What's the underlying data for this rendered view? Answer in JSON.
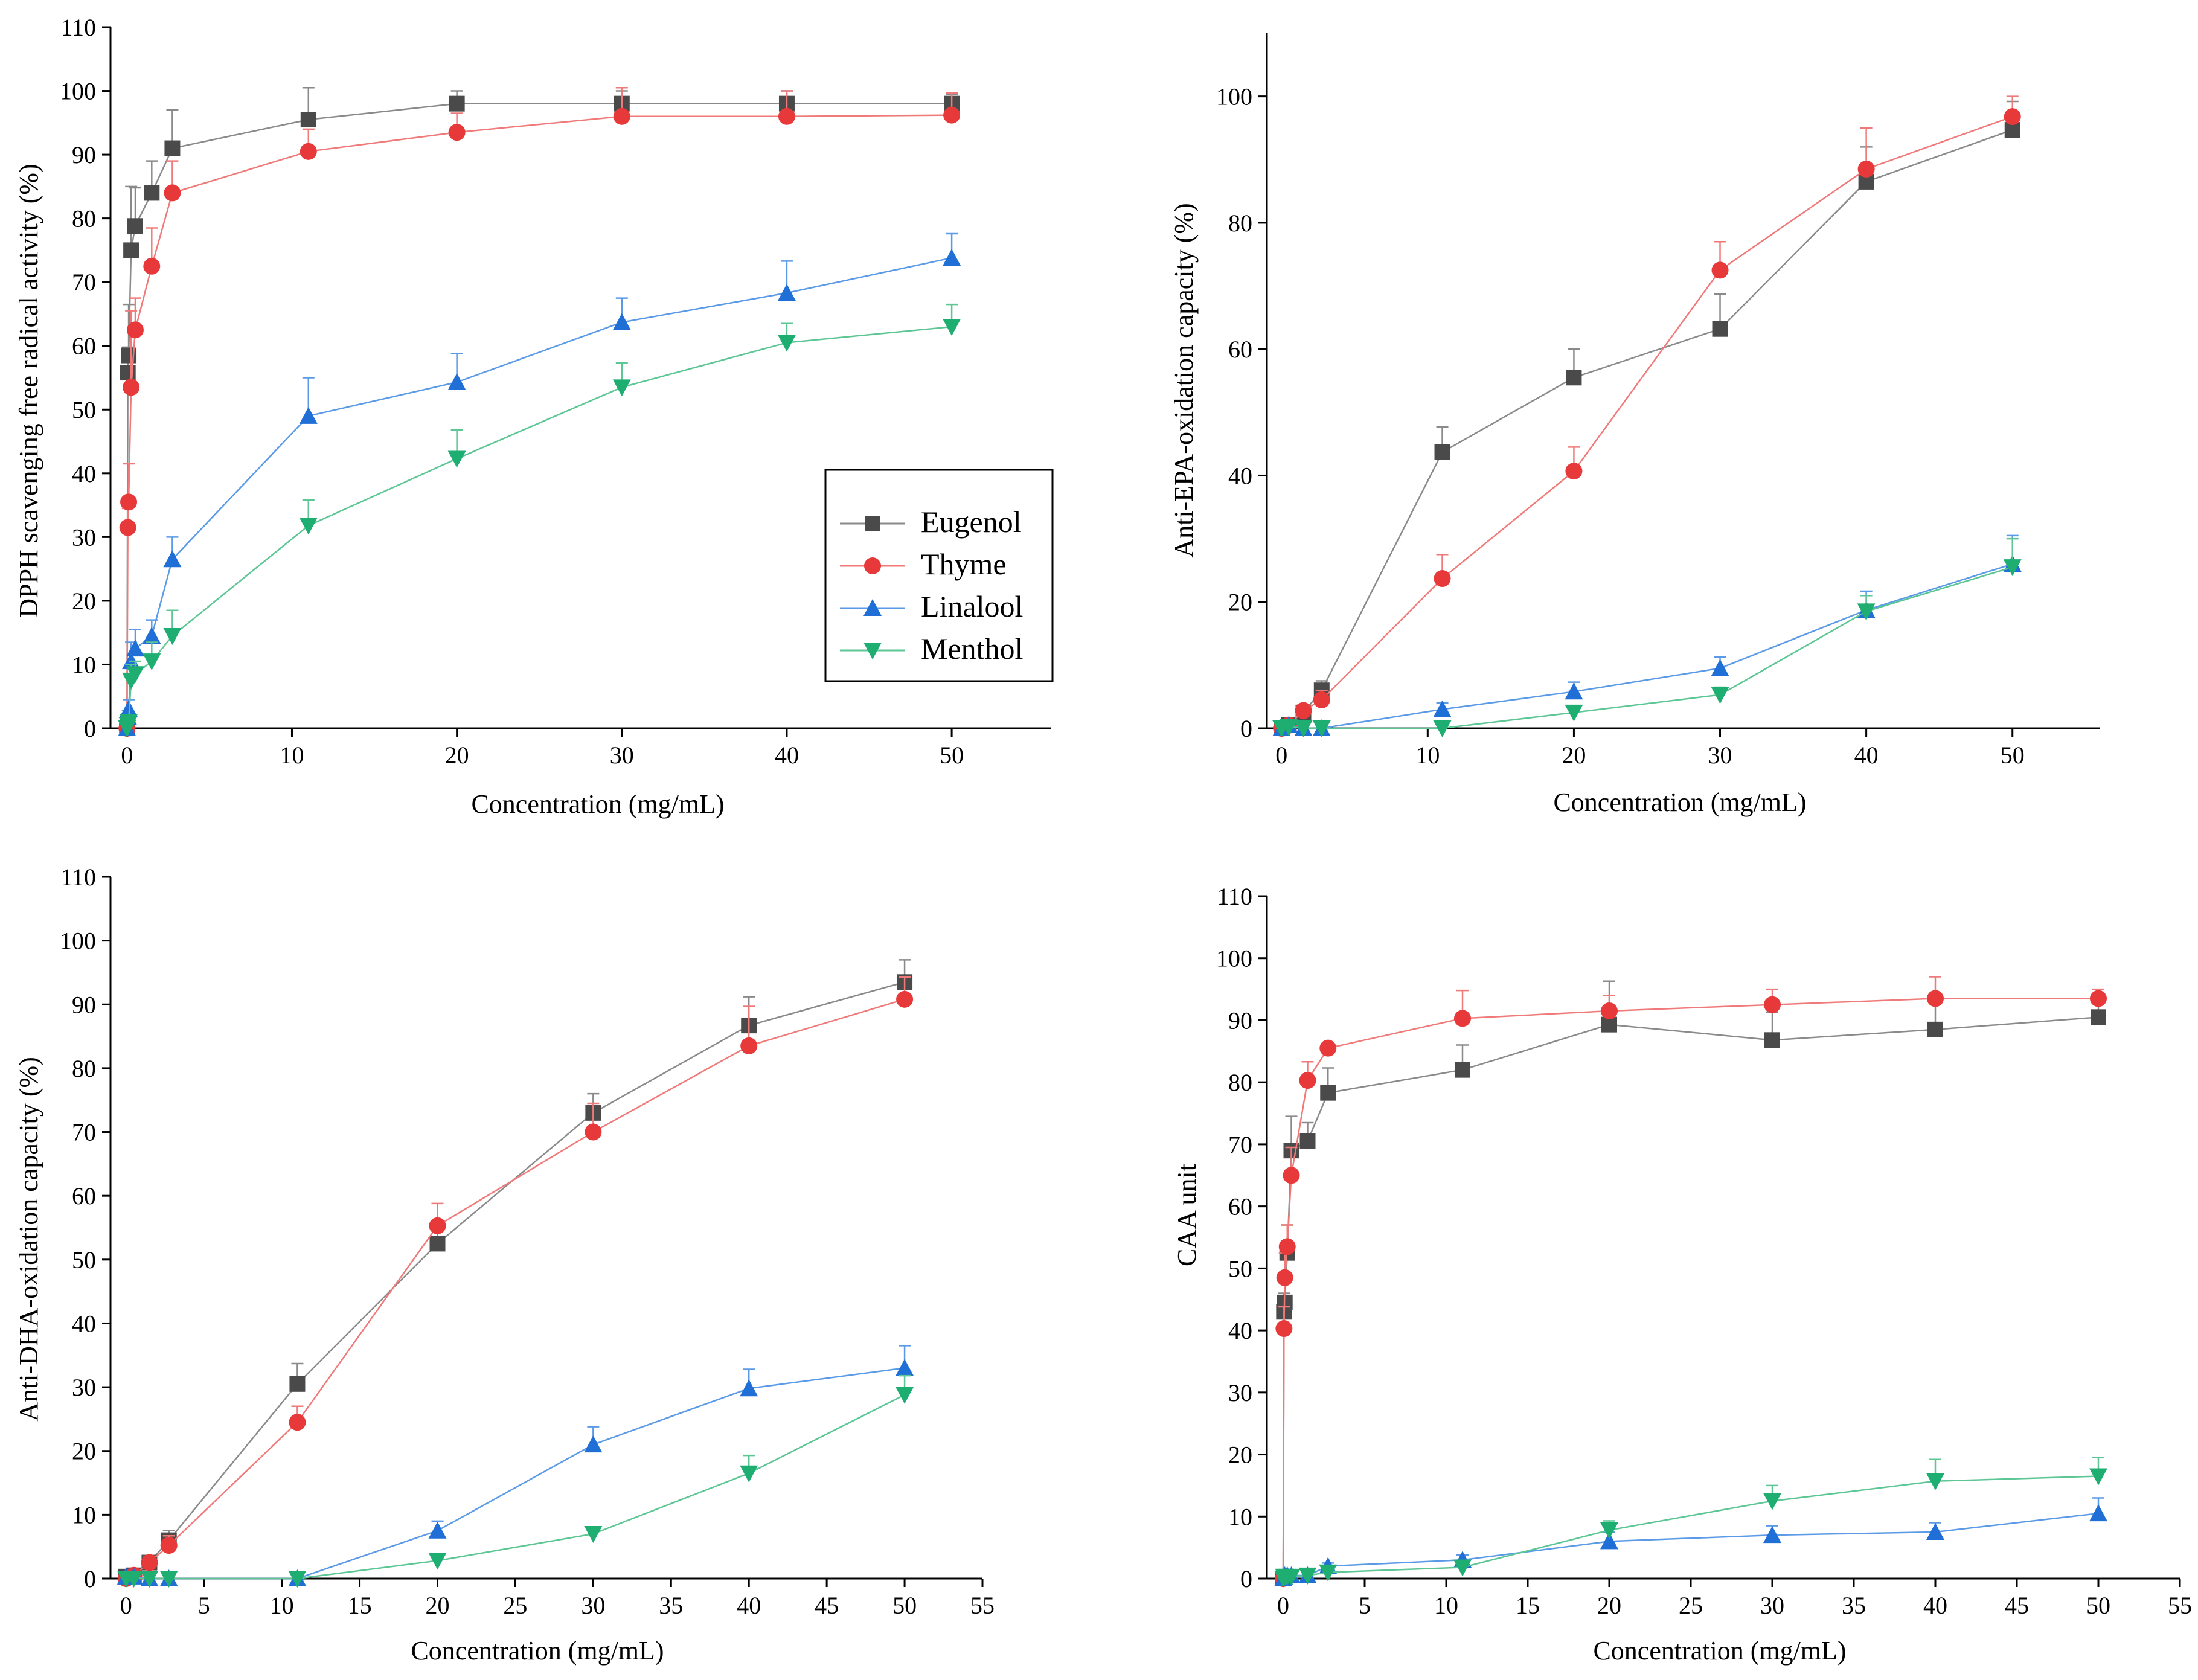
{
  "series_styles": [
    {
      "name": "Eugenol",
      "color": "#4a4a4a",
      "line": "#8a8a8a",
      "marker": "square"
    },
    {
      "name": "Thyme",
      "color": "#e8393a",
      "line": "#f07a7a",
      "marker": "circle"
    },
    {
      "name": "Linalool",
      "color": "#1f6fd6",
      "line": "#5a9ae6",
      "marker": "triangle-up"
    },
    {
      "name": "Menthol",
      "color": "#1fae72",
      "line": "#5cc695",
      "marker": "triangle-down"
    }
  ],
  "legend": {
    "entries": [
      "Eugenol",
      "Thyme",
      "Linalool",
      "Menthol"
    ],
    "location": "lower-right of top-left panel"
  },
  "chart_data": [
    {
      "type": "line",
      "title": "",
      "xlabel": "Concentration (mg/mL)",
      "ylabel": "DPPH scavenging  free radical activity (%)",
      "xlim": [
        -1,
        56
      ],
      "ylim": [
        0,
        110
      ],
      "xticks": [
        0,
        10,
        20,
        30,
        40,
        50
      ],
      "yticks": [
        0,
        10,
        20,
        30,
        40,
        50,
        60,
        70,
        80,
        90,
        100,
        110
      ],
      "x": [
        0,
        0.05,
        0.1,
        0.25,
        0.5,
        1.5,
        2.75,
        11,
        20,
        30,
        40,
        50
      ],
      "series": [
        {
          "name": "Eugenol",
          "values": [
            0,
            55.8,
            58.5,
            75,
            78.8,
            84,
            91,
            95.5,
            98,
            98,
            98,
            98
          ],
          "errors": [
            0,
            4,
            8,
            10,
            6,
            5,
            6,
            5,
            2,
            2,
            2,
            1.5
          ]
        },
        {
          "name": "Thyme",
          "values": [
            0,
            31.5,
            35.5,
            53.5,
            62.5,
            72.5,
            84,
            90.5,
            93.5,
            96,
            96,
            96.2
          ],
          "errors": [
            0,
            3,
            6,
            12,
            5,
            6,
            5,
            3.5,
            3,
            4.5,
            4,
            3.5
          ]
        },
        {
          "name": "Linalool",
          "values": [
            0,
            1.8,
            3,
            10.5,
            12.5,
            14.5,
            26.5,
            49,
            54.3,
            63.7,
            68.3,
            73.8
          ],
          "errors": [
            0,
            1,
            1.5,
            3,
            3,
            2.5,
            3.5,
            6,
            4.5,
            3.8,
            5,
            3.8
          ]
        },
        {
          "name": "Menthol",
          "values": [
            0,
            0.5,
            1,
            7.5,
            8.5,
            10.5,
            14.5,
            31.8,
            42.3,
            53.5,
            60.5,
            63
          ],
          "errors": [
            0,
            0.5,
            1,
            2.5,
            2,
            3,
            4,
            4,
            4.5,
            3.8,
            3,
            3.5
          ]
        }
      ]
    },
    {
      "type": "line",
      "title": "",
      "xlabel": "Concentration (mg/mL)",
      "ylabel": "Anti-EPA-oxidation capacity  (%)",
      "xlim": [
        -1,
        56
      ],
      "ylim": [
        0,
        110
      ],
      "xticks": [
        0,
        10,
        20,
        30,
        40,
        50
      ],
      "yticks": [
        0,
        20,
        40,
        60,
        80,
        100
      ],
      "x": [
        0,
        0.5,
        1.5,
        2.75,
        11,
        20,
        30,
        40,
        50
      ],
      "series": [
        {
          "name": "Eugenol",
          "values": [
            0,
            0.5,
            2.5,
            6,
            43.7,
            55.5,
            63.2,
            86.5,
            94.7
          ],
          "errors": [
            0,
            0.5,
            1,
            1.5,
            4,
            4.5,
            5.5,
            5.5,
            4.5
          ]
        },
        {
          "name": "Thyme",
          "values": [
            0,
            0.5,
            2.8,
            4.5,
            23.7,
            40.7,
            72.5,
            88.5,
            96.8
          ],
          "errors": [
            0,
            0.5,
            1,
            1.5,
            3.8,
            3.8,
            4.5,
            6.5,
            3.2
          ]
        },
        {
          "name": "Linalool",
          "values": [
            0,
            0.5,
            0,
            0,
            3,
            5.8,
            9.5,
            18.7,
            26
          ],
          "errors": [
            0,
            0.3,
            0,
            0,
            1,
            1.5,
            1.8,
            3,
            4.5
          ]
        },
        {
          "name": "Menthol",
          "values": [
            0,
            0.2,
            0,
            0,
            0,
            2.5,
            5.3,
            18.5,
            25.5
          ],
          "errors": [
            0,
            0.2,
            0,
            0,
            0,
            1,
            1.2,
            2.5,
            4.5
          ]
        }
      ]
    },
    {
      "type": "line",
      "title": "",
      "xlabel": "Concentration (mg/mL)",
      "ylabel": "Anti-DHA-oxidation capacity  (%)",
      "xlim": [
        -1,
        55
      ],
      "ylim": [
        0,
        110
      ],
      "xticks": [
        0,
        5,
        10,
        15,
        20,
        25,
        30,
        35,
        40,
        45,
        50,
        55
      ],
      "yticks": [
        0,
        10,
        20,
        30,
        40,
        50,
        60,
        70,
        80,
        90,
        100,
        110
      ],
      "x": [
        0,
        0.5,
        1.5,
        2.75,
        11,
        20,
        30,
        40,
        50
      ],
      "series": [
        {
          "name": "Eugenol",
          "values": [
            0.3,
            0.5,
            2.5,
            6,
            30.5,
            52.5,
            73,
            86.7,
            93.5
          ],
          "errors": [
            0,
            0.5,
            1,
            1.5,
            3.2,
            2.5,
            3,
            4.5,
            3.5
          ]
        },
        {
          "name": "Thyme",
          "values": [
            0,
            0.5,
            2.5,
            5.2,
            24.5,
            55.3,
            70,
            83.5,
            90.8
          ],
          "errors": [
            0,
            0.5,
            1,
            1.5,
            2.5,
            3.5,
            4.5,
            6.2,
            3.5
          ]
        },
        {
          "name": "Linalool",
          "values": [
            0.3,
            0.3,
            0,
            0,
            0,
            7.5,
            21,
            29.8,
            33
          ],
          "errors": [
            0,
            0.2,
            0,
            0,
            0,
            1.5,
            2.8,
            3,
            3.5
          ]
        },
        {
          "name": "Menthol",
          "values": [
            0,
            0,
            0,
            0,
            0,
            2.8,
            7,
            16.5,
            28.8
          ],
          "errors": [
            0,
            0,
            0,
            0,
            0,
            0.5,
            1,
            2.8,
            3
          ]
        }
      ]
    },
    {
      "type": "line",
      "title": "",
      "xlabel": "Concentration (mg/mL)",
      "ylabel": "CAA unit",
      "xlim": [
        -1,
        55
      ],
      "ylim": [
        0,
        110
      ],
      "xticks": [
        0,
        5,
        10,
        15,
        20,
        25,
        30,
        35,
        40,
        45,
        50,
        55
      ],
      "yticks": [
        0,
        10,
        20,
        30,
        40,
        50,
        60,
        70,
        80,
        90,
        100,
        110
      ],
      "x": [
        0,
        0.05,
        0.1,
        0.25,
        0.5,
        1.5,
        2.75,
        11,
        20,
        30,
        40,
        50
      ],
      "series": [
        {
          "name": "Eugenol",
          "values": [
            0,
            43,
            44.5,
            52.5,
            69,
            70.5,
            78.3,
            82,
            89.3,
            86.8,
            88.5,
            90.5
          ],
          "errors": [
            0,
            3,
            4,
            4.5,
            5.5,
            3,
            4,
            4,
            7,
            4.5,
            4.5,
            3.5
          ]
        },
        {
          "name": "Thyme",
          "values": [
            0,
            40.3,
            48.5,
            53.5,
            65,
            80.3,
            85.5,
            90.3,
            91.5,
            92.5,
            93.5,
            93.5
          ],
          "errors": [
            0,
            3.5,
            4,
            3.5,
            4.5,
            3,
            0,
            4.5,
            2.5,
            2.5,
            3.5,
            1.5
          ]
        },
        {
          "name": "Linalool",
          "values": [
            0,
            0.3,
            0.5,
            0.5,
            0.5,
            0.5,
            2,
            3,
            6,
            7,
            7.5,
            10.5
          ],
          "errors": [
            0,
            0,
            0,
            0,
            0,
            0,
            0.5,
            0.8,
            1.5,
            1.5,
            1.5,
            2.5
          ]
        },
        {
          "name": "Menthol",
          "values": [
            0,
            0.3,
            0.3,
            0.3,
            0.3,
            0.5,
            1,
            1.8,
            7.8,
            12.5,
            15.7,
            16.5
          ],
          "errors": [
            0,
            0,
            0,
            0,
            0,
            0,
            0,
            0.5,
            1.5,
            2.5,
            3.5,
            3
          ]
        }
      ]
    }
  ]
}
